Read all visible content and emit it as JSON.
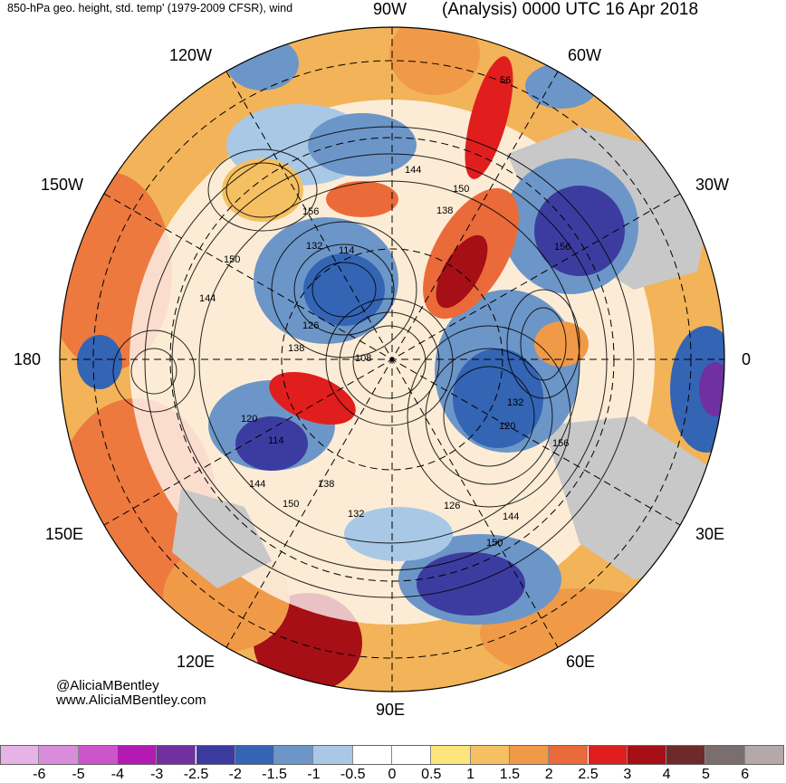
{
  "header": {
    "left_title": "850-hPa geo. height, std. temp' (1979-2009 CFSR), wind",
    "right_title": "(Analysis) 0000 UTC 16 Apr 2018"
  },
  "longitude_labels": {
    "w90": "90W",
    "w60": "60W",
    "w30": "30W",
    "zero": "0",
    "e30": "30E",
    "e60": "60E",
    "e90": "90E",
    "e120": "120E",
    "e150": "150E",
    "d180": "180",
    "w150": "150W",
    "w120": "120W"
  },
  "contour_labels": [
    "56",
    "144",
    "150",
    "156",
    "138",
    "156",
    "132",
    "114",
    "150",
    "144",
    "126",
    "138",
    "108",
    "132",
    "120",
    "156",
    "120",
    "114",
    "144",
    "138",
    "150",
    "132",
    "126",
    "144",
    "150"
  ],
  "credit": {
    "handle": "@AliciaMBentley",
    "site": "www.AliciaMBentley.com"
  },
  "colorbar": {
    "labels": [
      "-6",
      "-5",
      "-4",
      "-3",
      "-2.5",
      "-2",
      "-1.5",
      "-1",
      "-0.5",
      "0",
      "0.5",
      "1",
      "1.5",
      "2",
      "2.5",
      "3",
      "4",
      "5",
      "6"
    ],
    "colors": [
      "#e6b3e6",
      "#d98cd9",
      "#cc55cc",
      "#b31ab3",
      "#7030a0",
      "#3c3ca0",
      "#3464b4",
      "#6c96c8",
      "#a8c8e6",
      "#ffffff",
      "#ffffff",
      "#fce57a",
      "#f5c062",
      "#f09a48",
      "#eb6a3a",
      "#e01e1e",
      "#a50f15",
      "#6e2a2a",
      "#7a6e6e",
      "#b4a8a8"
    ]
  },
  "colors": {
    "land_gray": "#c8c8c8",
    "cold": "#3c3ca0",
    "warm": "#e01e1e"
  }
}
